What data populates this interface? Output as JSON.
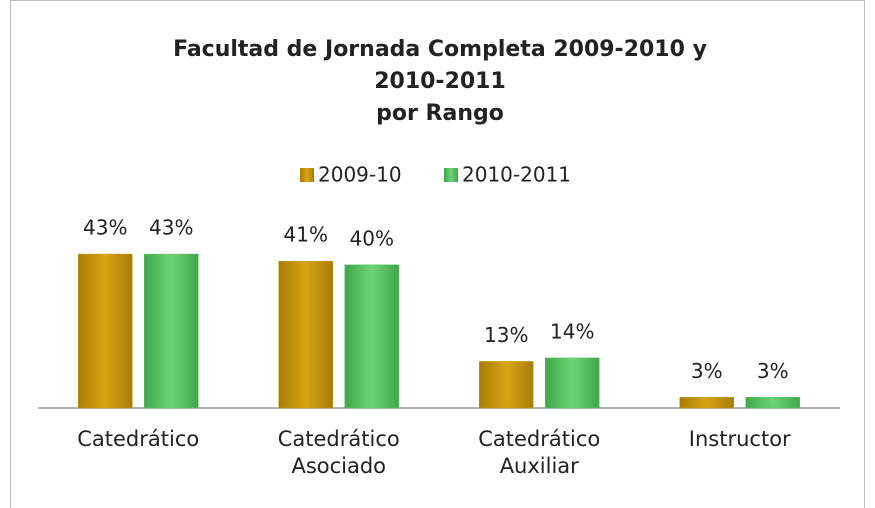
{
  "chart_data": {
    "type": "bar",
    "title": [
      "Facultad de Jornada Completa 2009-2010 y",
      "2010-2011",
      "por Rango"
    ],
    "categories": [
      "Catedrático",
      "Catedrático Asociado",
      "Catedrático Auxiliar",
      "Instructor"
    ],
    "series": [
      {
        "name": "2009-10",
        "color": "#c8960c",
        "values": [
          43,
          41,
          13,
          3
        ],
        "value_labels": [
          "43%",
          "41%",
          "13%",
          "3%"
        ]
      },
      {
        "name": "2010-2011",
        "color": "#5cc466",
        "values": [
          43,
          40,
          14,
          3
        ],
        "value_labels": [
          "43%",
          "40%",
          "14%",
          "3%"
        ]
      }
    ],
    "ylim": [
      0,
      50
    ],
    "legend": "top"
  }
}
